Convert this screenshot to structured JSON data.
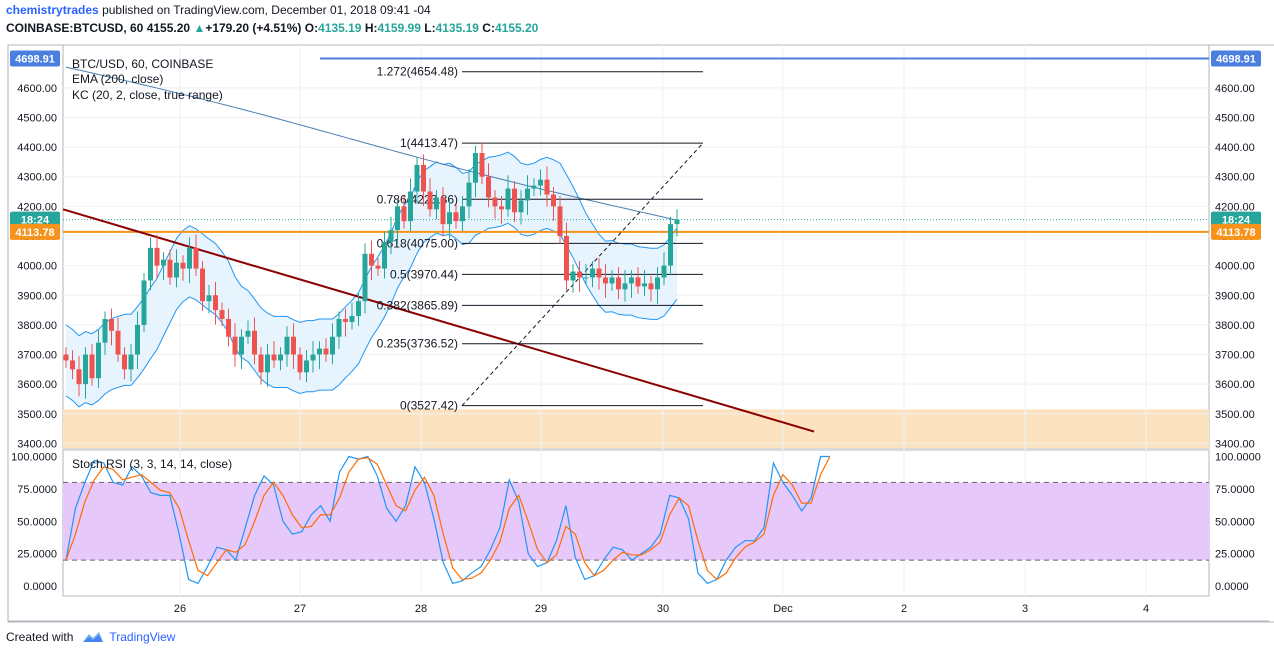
{
  "header": {
    "author": "chemistrytrades",
    "published": "published on TradingView.com, December 01, 2018 09:41 -04",
    "symbol": "COINBASE:BTCUSD, 60",
    "last": "4155.20",
    "change_arrow": "▲",
    "change": "+179.20 (+4.51%)",
    "o_label": "O:",
    "o_value": "4135.19",
    "h_label": "H:",
    "h_value": "4159.99",
    "l_label": "L:",
    "l_value": "4135.19",
    "c_label": "C:",
    "c_value": "4155.20"
  },
  "legend": {
    "line1": "BTC/USD, 60, COINBASE",
    "line2": "EMA (200, close)",
    "line3": "KC (20, 2, close, true range)"
  },
  "footer": {
    "created_with": "Created with",
    "brand": "TradingView"
  },
  "colors": {
    "up": "#26a69a",
    "down": "#ef5350",
    "ema": "#4a7fb3",
    "kc": "#2196f3",
    "kc_fill": "#e3f2fd",
    "trendline": "#8b0000",
    "resistance": "#4a7fe0",
    "current": "#f7931a",
    "support_zone": "#fde2bf",
    "rsi_k": "#2196f3",
    "rsi_d": "#ff6d00",
    "rsi_band": "#e6c8fb"
  },
  "chart_data": [
    {
      "type": "candlestick",
      "x_labels": [
        "26",
        "27",
        "28",
        "29",
        "30",
        "Dec",
        "2",
        "3",
        "4"
      ],
      "ylim": [
        3400,
        4750
      ],
      "y_ticks": [
        3400,
        3500,
        3600,
        3700,
        3800,
        3900,
        4000,
        4100,
        4200,
        4300,
        4400,
        4500,
        4600
      ],
      "y_tick_labels": [
        "3400.00",
        "3500.00",
        "3600.00",
        "3700.00",
        "3800.00",
        "3900.00",
        "4000.00",
        "4100.00",
        "4200.00",
        "4300.00",
        "4400.00",
        "4500.00",
        "4600.00"
      ],
      "markers": [
        {
          "label": "4698.91",
          "value": 4698.91
        },
        {
          "label": "18:24",
          "value": 4155.2
        },
        {
          "label": "4113.78",
          "value": 4113.78
        }
      ],
      "closes": [
        3680,
        3650,
        3600,
        3700,
        3620,
        3740,
        3820,
        3780,
        3700,
        3650,
        3700,
        3800,
        3950,
        4060,
        4000,
        4020,
        3960,
        4010,
        3990,
        4060,
        3990,
        3880,
        3900,
        3850,
        3820,
        3760,
        3700,
        3760,
        3780,
        3700,
        3640,
        3700,
        3680,
        3700,
        3760,
        3700,
        3640,
        3680,
        3700,
        3720,
        3700,
        3760,
        3820,
        3810,
        3830,
        3880,
        4040,
        4000,
        3990,
        4080,
        4120,
        4200,
        4150,
        4250,
        4340,
        4250,
        4190,
        4230,
        4140,
        4180,
        4150,
        4200,
        4280,
        4380,
        4300,
        4230,
        4200,
        4190,
        4260,
        4180,
        4220,
        4260,
        4270,
        4290,
        4240,
        4200,
        4100,
        3950,
        3980,
        3960,
        3960,
        3990,
        3960,
        3940,
        3960,
        3920,
        3940,
        3960,
        3930,
        3940,
        3920,
        3960,
        4000,
        4140,
        4155
      ],
      "fib_levels": [
        {
          "label": "1.272(4654.48)",
          "value": 4654.48
        },
        {
          "label": "1(4413.47)",
          "value": 4413.47
        },
        {
          "label": "0.786(4223.86)",
          "value": 4223.86
        },
        {
          "label": "0.618(4075.00)",
          "value": 4075.0
        },
        {
          "label": "0.5(3970.44)",
          "value": 3970.44
        },
        {
          "label": "0.382(3865.89)",
          "value": 3865.89
        },
        {
          "label": "0.235(3736.52)",
          "value": 3736.52
        },
        {
          "label": "0(3527.42)",
          "value": 3527.42
        }
      ],
      "support_zone": [
        3400,
        3515
      ],
      "resistance_line": 4698.91,
      "current_line": 4113.78
    },
    {
      "type": "line",
      "title": "Stoch RSI (3, 3, 14, 14, close)",
      "ylim": [
        -5,
        105
      ],
      "y_ticks": [
        0,
        25,
        50,
        75,
        100
      ],
      "y_tick_labels": [
        "0.0000",
        "25.0000",
        "50.0000",
        "75.0000",
        "100.0000"
      ],
      "band": [
        20,
        80
      ],
      "series": [
        {
          "values": [
            20,
            60,
            80,
            97,
            95,
            80,
            78,
            92,
            85,
            72,
            70,
            70,
            40,
            5,
            2,
            15,
            30,
            28,
            20,
            45,
            70,
            85,
            78,
            50,
            40,
            42,
            55,
            62,
            50,
            88,
            100,
            98,
            100,
            85,
            60,
            50,
            62,
            92,
            80,
            52,
            18,
            2,
            4,
            10,
            15,
            28,
            45,
            82,
            65,
            25,
            15,
            18,
            35,
            62,
            22,
            5,
            8,
            20,
            30,
            28,
            20,
            25,
            30,
            40,
            70,
            68,
            52,
            10,
            2,
            5,
            20,
            30,
            35,
            35,
            45,
            95,
            80,
            70,
            58,
            68,
            100,
            100
          ]
        },
        {
          "values": [
            20,
            40,
            65,
            82,
            92,
            90,
            82,
            84,
            86,
            80,
            74,
            72,
            60,
            35,
            12,
            8,
            18,
            28,
            26,
            32,
            50,
            70,
            80,
            70,
            55,
            45,
            46,
            55,
            55,
            68,
            88,
            98,
            99,
            94,
            78,
            62,
            58,
            74,
            84,
            70,
            40,
            14,
            5,
            6,
            10,
            20,
            34,
            60,
            70,
            50,
            28,
            18,
            24,
            46,
            40,
            18,
            8,
            12,
            20,
            26,
            24,
            24,
            28,
            34,
            55,
            68,
            62,
            35,
            12,
            5,
            10,
            22,
            30,
            34,
            40,
            70,
            86,
            78,
            64,
            64,
            86,
            100
          ]
        }
      ]
    }
  ]
}
